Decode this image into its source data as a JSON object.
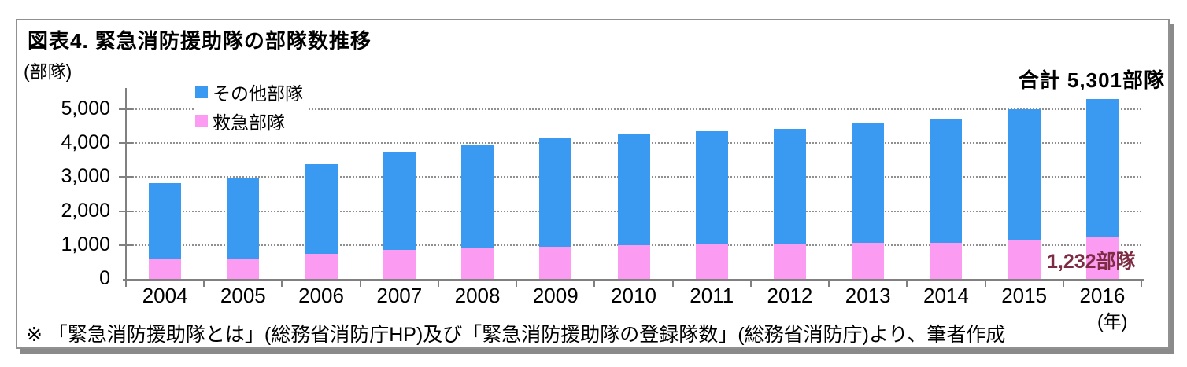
{
  "figure": {
    "title": "図表4. 緊急消防援助隊の部隊数推移",
    "y_axis_unit": "(部隊)",
    "x_axis_unit": "(年)",
    "total_annotation": "合計 5,301部隊",
    "ems_annotation": "1,232部隊",
    "footnote": "※ 「緊急消防援助隊とは」(総務省消防庁HP)及び「緊急消防援助隊の登録隊数」(総務省消防庁)より、筆者作成"
  },
  "legend": [
    {
      "label": "その他部隊",
      "color": "#3a99f0",
      "swatch": "square-icon"
    },
    {
      "label": "救急部隊",
      "color": "#fb9bf2",
      "swatch": "square-icon"
    }
  ],
  "colors": {
    "other_units": "#3a99f0",
    "ems_units": "#fb9bf2",
    "annotation_maroon": "#7e2c44",
    "axis": "#808080",
    "gridline": "#8f8f8f",
    "frame_border": "#909090",
    "frame_shadow": "#8a8a8a"
  },
  "chart_data": {
    "type": "bar",
    "stacked": true,
    "title": "図表4. 緊急消防援助隊の部隊数推移",
    "xlabel": "(年)",
    "ylabel": "(部隊)",
    "categories": [
      "2004",
      "2005",
      "2006",
      "2007",
      "2008",
      "2009",
      "2010",
      "2011",
      "2012",
      "2013",
      "2014",
      "2015",
      "2016"
    ],
    "series": [
      {
        "name": "救急部隊",
        "color": "#fb9bf2",
        "values": [
          600,
          610,
          750,
          860,
          930,
          960,
          995,
          1010,
          1030,
          1055,
          1070,
          1125,
          1232
        ]
      },
      {
        "name": "その他部隊",
        "color": "#3a99f0",
        "values": [
          2221,
          2353,
          2630,
          2889,
          3031,
          3196,
          3259,
          3344,
          3399,
          3551,
          3624,
          3859,
          4069
        ]
      }
    ],
    "totals": [
      2821,
      2963,
      3380,
      3749,
      3961,
      4156,
      4254,
      4354,
      4429,
      4606,
      4694,
      4984,
      5301
    ],
    "labeled_values": {
      "total_2016": "5,301",
      "ems_2016": "1,232"
    },
    "yticks": [
      0,
      1000,
      2000,
      3000,
      4000,
      5000
    ],
    "ytick_labels": [
      "0",
      "1,000",
      "2,000",
      "3,000",
      "4,000",
      "5,000"
    ],
    "ylim": [
      0,
      5625
    ],
    "grid": "horizontal-dotted",
    "legend_position": "upper-left-inside"
  }
}
